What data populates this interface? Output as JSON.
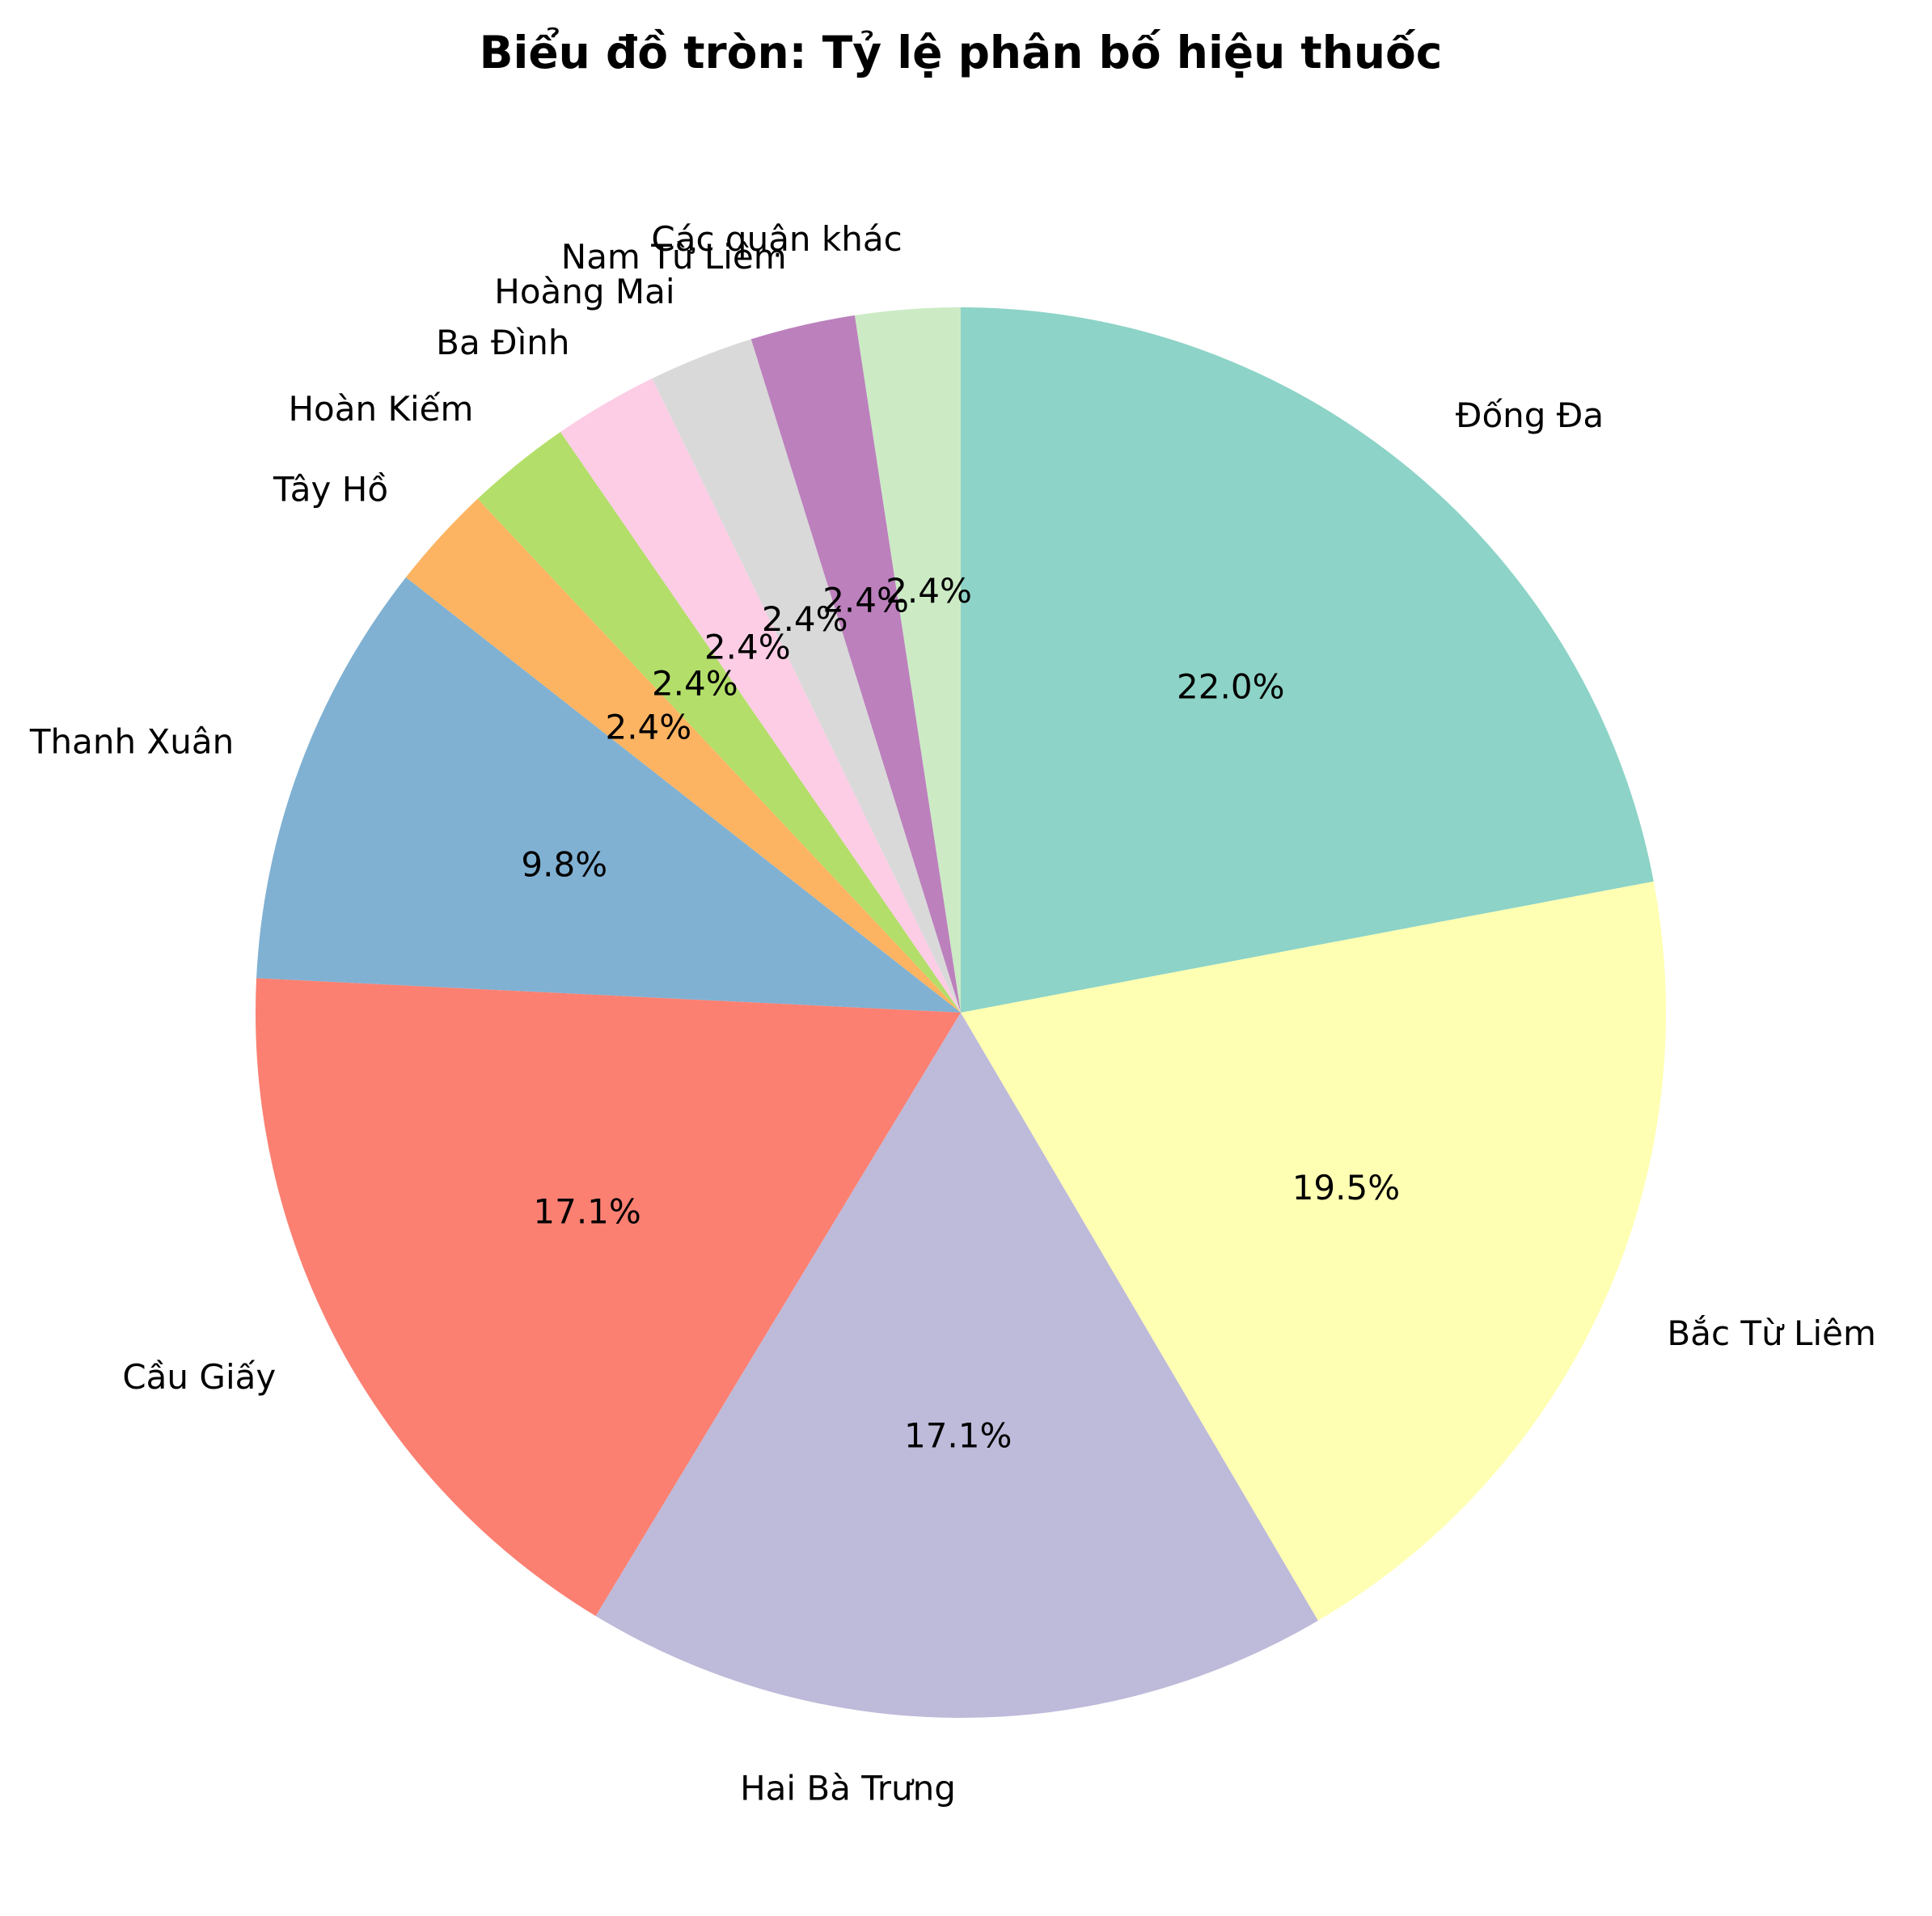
{
  "chart_data": {
    "type": "pie",
    "title": "Biểu đồ tròn: Tỷ lệ phân bố hiệu thuốc",
    "start_angle_deg": 90,
    "direction": "counterclockwise",
    "legend": "none",
    "slices": [
      {
        "label": "Các quận khác",
        "percent": 2.4,
        "pct_label": "2.4%",
        "color": "#ccebc5"
      },
      {
        "label": "Nam Từ Liêm",
        "percent": 2.4,
        "pct_label": "2.4%",
        "color": "#bc80bd"
      },
      {
        "label": "Hoàng Mai",
        "percent": 2.4,
        "pct_label": "2.4%",
        "color": "#d9d9d9"
      },
      {
        "label": "Ba Đình",
        "percent": 2.4,
        "pct_label": "2.4%",
        "color": "#fccde5"
      },
      {
        "label": "Hoàn Kiếm",
        "percent": 2.4,
        "pct_label": "2.4%",
        "color": "#b3de69"
      },
      {
        "label": "Tây Hồ",
        "percent": 2.4,
        "pct_label": "2.4%",
        "color": "#fdb462"
      },
      {
        "label": "Thanh Xuân",
        "percent": 9.8,
        "pct_label": "9.8%",
        "color": "#80b1d3"
      },
      {
        "label": "Cầu Giấy",
        "percent": 17.1,
        "pct_label": "17.1%",
        "color": "#fb8072"
      },
      {
        "label": "Hai Bà Trưng",
        "percent": 17.1,
        "pct_label": "17.1%",
        "color": "#bebada"
      },
      {
        "label": "Bắc Từ Liêm",
        "percent": 19.5,
        "pct_label": "19.5%",
        "color": "#ffffb3"
      },
      {
        "label": "Đống Đa",
        "percent": 22.0,
        "pct_label": "22.0%",
        "color": "#8dd3c7"
      }
    ]
  }
}
